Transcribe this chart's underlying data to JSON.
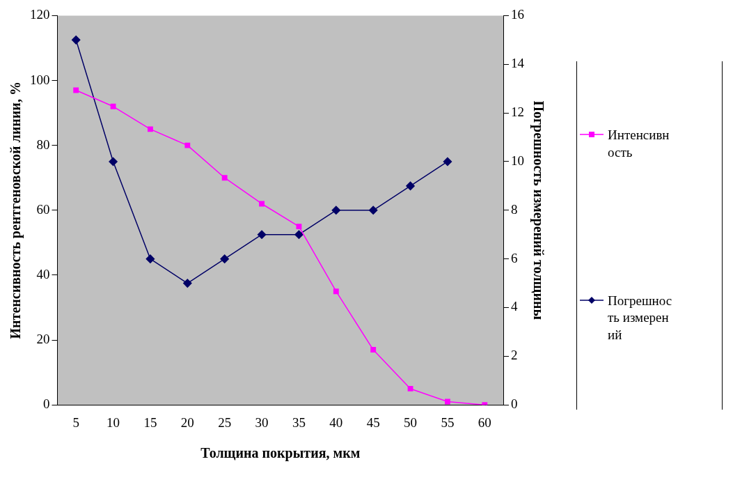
{
  "chart_data": {
    "type": "line",
    "xlabel": "Толщина покрытия, мкм",
    "ylabel": "Интенсивность рентгеновской линии, %",
    "y2label": "Погрешность измерений толщины",
    "categories": [
      "5",
      "10",
      "15",
      "20",
      "25",
      "30",
      "35",
      "40",
      "45",
      "50",
      "55",
      "60"
    ],
    "series": [
      {
        "name": "Интенсивность",
        "color": "#ff00ff",
        "marker": "square",
        "values": [
          97,
          92,
          85,
          80,
          70,
          62,
          55,
          35,
          17,
          5,
          1,
          0
        ]
      },
      {
        "name": "Погрешность измерений",
        "color": "#000066",
        "marker": "diamond",
        "axis": "y2",
        "values": [
          15,
          10,
          6,
          5,
          6,
          7,
          7,
          8,
          8,
          9,
          10,
          null
        ]
      }
    ],
    "ylim": [
      0,
      120
    ],
    "yticks": [
      0,
      20,
      40,
      60,
      80,
      100,
      120
    ],
    "y2lim": [
      0,
      16
    ],
    "y2ticks": [
      0,
      2,
      4,
      6,
      8,
      10,
      12,
      14,
      16
    ],
    "grid": false,
    "legend": "right"
  }
}
